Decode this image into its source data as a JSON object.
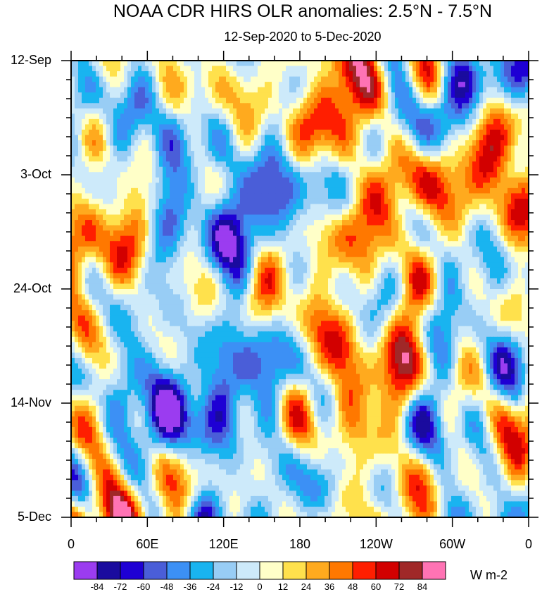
{
  "chart_data": {
    "type": "heatmap",
    "title": "NOAA CDR HIRS OLR anomalies: 2.5°N - 7.5°N",
    "subtitle": "12-Sep-2020 to 5-Dec-2020",
    "xlabel": "",
    "ylabel": "",
    "x_ticks": [
      "0",
      "60E",
      "120E",
      "180",
      "120W",
      "60W",
      "0"
    ],
    "x_tick_values": [
      0,
      60,
      120,
      180,
      240,
      300,
      360
    ],
    "y_ticks": [
      "12-Sep",
      "3-Oct",
      "24-Oct",
      "14-Nov",
      "5-Dec"
    ],
    "x_range": [
      0,
      360
    ],
    "time_range": [
      "12-Sep-2020",
      "5-Dec-2020"
    ],
    "colorbar_levels": [
      "-84",
      "-72",
      "-60",
      "-48",
      "-36",
      "-24",
      "-12",
      "0",
      "12",
      "24",
      "36",
      "48",
      "60",
      "72",
      "84"
    ],
    "colorbar_colors": [
      "#9b3cf0",
      "#1a0b9e",
      "#1e00d4",
      "#4a5ed8",
      "#3c90f5",
      "#19b4f0",
      "#98cdf5",
      "#cdeafa",
      "#ffffc8",
      "#ffe14c",
      "#ffaa1e",
      "#ff7800",
      "#ff1e00",
      "#d20000",
      "#a02828",
      "#ff73b4"
    ],
    "units": "W m-2"
  }
}
